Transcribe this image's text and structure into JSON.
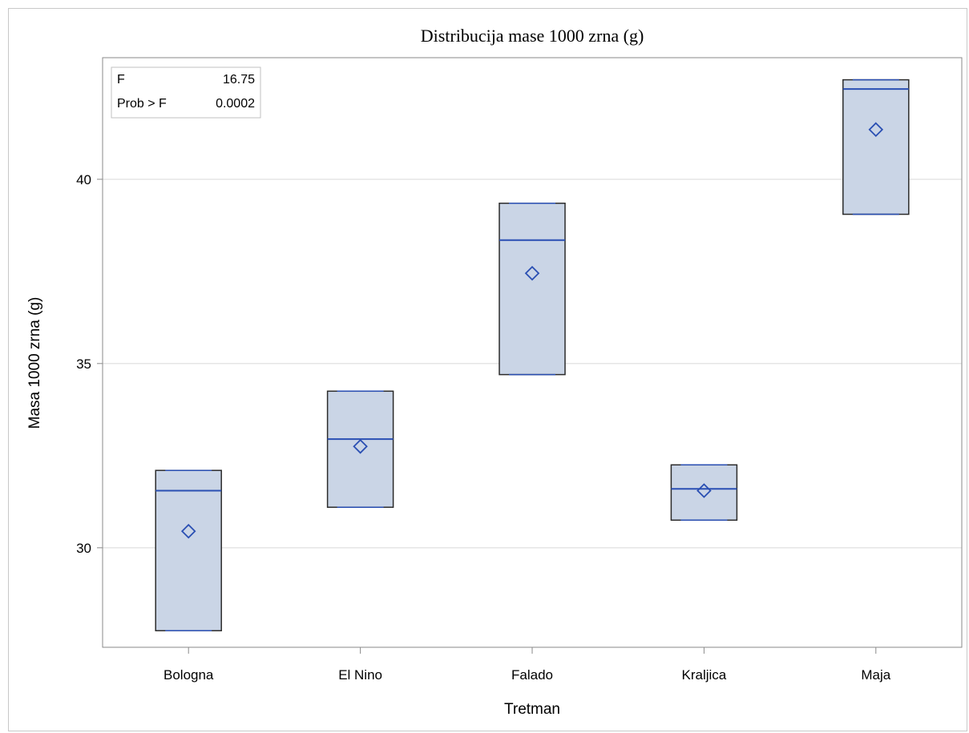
{
  "chart_data": {
    "type": "box",
    "title": "Distribucija mase 1000 zrna (g)",
    "xlabel": "Tretman",
    "ylabel": "Masa 1000 zrna (g)",
    "ylim": [
      27.3,
      43.3
    ],
    "yticks": [
      30,
      35,
      40
    ],
    "grid": "horizontal",
    "categories": [
      "Bologna",
      "El Nino",
      "Falado",
      "Kraljica",
      "Maja"
    ],
    "boxes": [
      {
        "category": "Bologna",
        "min": 27.75,
        "q1": 27.75,
        "median": 31.55,
        "q3": 32.1,
        "max": 32.1,
        "mean": 30.45
      },
      {
        "category": "El Nino",
        "min": 31.1,
        "q1": 31.1,
        "median": 32.95,
        "q3": 34.25,
        "max": 34.25,
        "mean": 32.75
      },
      {
        "category": "Falado",
        "min": 34.7,
        "q1": 34.7,
        "median": 38.35,
        "q3": 39.35,
        "max": 39.35,
        "mean": 37.45
      },
      {
        "category": "Kraljica",
        "min": 30.75,
        "q1": 30.75,
        "median": 31.6,
        "q3": 32.25,
        "max": 32.25,
        "mean": 31.55
      },
      {
        "category": "Maja",
        "min": 39.05,
        "q1": 39.05,
        "median": 42.45,
        "q3": 42.7,
        "max": 42.7,
        "mean": 41.35
      }
    ],
    "stats_box": {
      "rows": [
        {
          "label": "F",
          "value": "16.75"
        },
        {
          "label": "Prob > F",
          "value": "0.0002"
        }
      ],
      "position": "top-left"
    },
    "colors": {
      "box_fill": "#cad5e6",
      "box_edge": "#2b2b2b",
      "median_line": "#2a4fb3",
      "mean_marker": "#2a4fb3",
      "grid": "#e6e6e6",
      "axis": "#8a8a8a"
    }
  }
}
